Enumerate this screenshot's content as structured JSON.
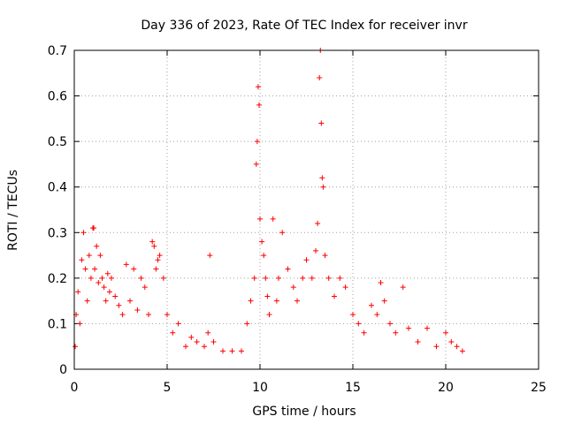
{
  "chart_data": {
    "type": "scatter",
    "title": "Day 336 of 2023, Rate Of TEC Index for receiver invr",
    "xlabel": "GPS time / hours",
    "ylabel": "ROTI / TECUs",
    "xlim": [
      0,
      25
    ],
    "ylim": [
      0,
      0.7
    ],
    "x_ticks": [
      0,
      5,
      10,
      15,
      20,
      25
    ],
    "y_ticks": [
      0,
      0.1,
      0.2,
      0.3,
      0.4,
      0.5,
      0.6,
      0.7
    ],
    "x_tick_labels": [
      "0",
      "5",
      "10",
      "15",
      "20",
      "25"
    ],
    "y_tick_labels": [
      "0",
      "0.1",
      "0.2",
      "0.3",
      "0.4",
      "0.5",
      "0.6",
      "0.7"
    ],
    "grid": true,
    "marker": "+",
    "color": "#ff0000",
    "series": [
      {
        "x": [
          0.05,
          0.1,
          0.2,
          0.3,
          0.4,
          0.5,
          0.6,
          0.7,
          0.8,
          0.9,
          1.0,
          1.05,
          1.1,
          1.2,
          1.3,
          1.4,
          1.5,
          1.6,
          1.7,
          1.8,
          1.9,
          2.0,
          2.2,
          2.4,
          2.6,
          2.8,
          3.0,
          3.2,
          3.4,
          3.6,
          3.8,
          4.0,
          4.2,
          4.3,
          4.4,
          4.5,
          4.6,
          4.8,
          5.0,
          5.3,
          5.6,
          6.0,
          6.3,
          6.6,
          7.0,
          7.2,
          7.3,
          7.5,
          8.0,
          8.5,
          9.0,
          9.3,
          9.5,
          9.7,
          9.8,
          9.85,
          9.9,
          9.95,
          10.0,
          10.1,
          10.2,
          10.3,
          10.4,
          10.5,
          10.7,
          10.9,
          11.0,
          11.2,
          11.5,
          11.8,
          12.0,
          12.3,
          12.5,
          12.8,
          13.0,
          13.1,
          13.2,
          13.25,
          13.3,
          13.35,
          13.4,
          13.5,
          13.7,
          14.0,
          14.3,
          14.6,
          15.0,
          15.3,
          15.6,
          16.0,
          16.3,
          16.5,
          16.7,
          17.0,
          17.3,
          17.7,
          18.0,
          18.5,
          19.0,
          19.5,
          20.0,
          20.3,
          20.6,
          20.9
        ],
        "y": [
          0.05,
          0.12,
          0.17,
          0.1,
          0.24,
          0.3,
          0.22,
          0.15,
          0.25,
          0.2,
          0.31,
          0.31,
          0.22,
          0.27,
          0.19,
          0.25,
          0.2,
          0.18,
          0.15,
          0.21,
          0.17,
          0.2,
          0.16,
          0.14,
          0.12,
          0.23,
          0.15,
          0.22,
          0.13,
          0.2,
          0.18,
          0.12,
          0.28,
          0.27,
          0.22,
          0.24,
          0.25,
          0.2,
          0.12,
          0.08,
          0.1,
          0.05,
          0.07,
          0.06,
          0.05,
          0.08,
          0.25,
          0.06,
          0.04,
          0.04,
          0.04,
          0.1,
          0.15,
          0.2,
          0.45,
          0.5,
          0.62,
          0.58,
          0.33,
          0.28,
          0.25,
          0.2,
          0.16,
          0.12,
          0.33,
          0.15,
          0.2,
          0.3,
          0.22,
          0.18,
          0.15,
          0.2,
          0.24,
          0.2,
          0.26,
          0.32,
          0.64,
          0.7,
          0.54,
          0.42,
          0.4,
          0.25,
          0.2,
          0.16,
          0.2,
          0.18,
          0.12,
          0.1,
          0.08,
          0.14,
          0.12,
          0.19,
          0.15,
          0.1,
          0.08,
          0.18,
          0.09,
          0.06,
          0.09,
          0.05,
          0.08,
          0.06,
          0.05,
          0.04
        ]
      }
    ]
  }
}
